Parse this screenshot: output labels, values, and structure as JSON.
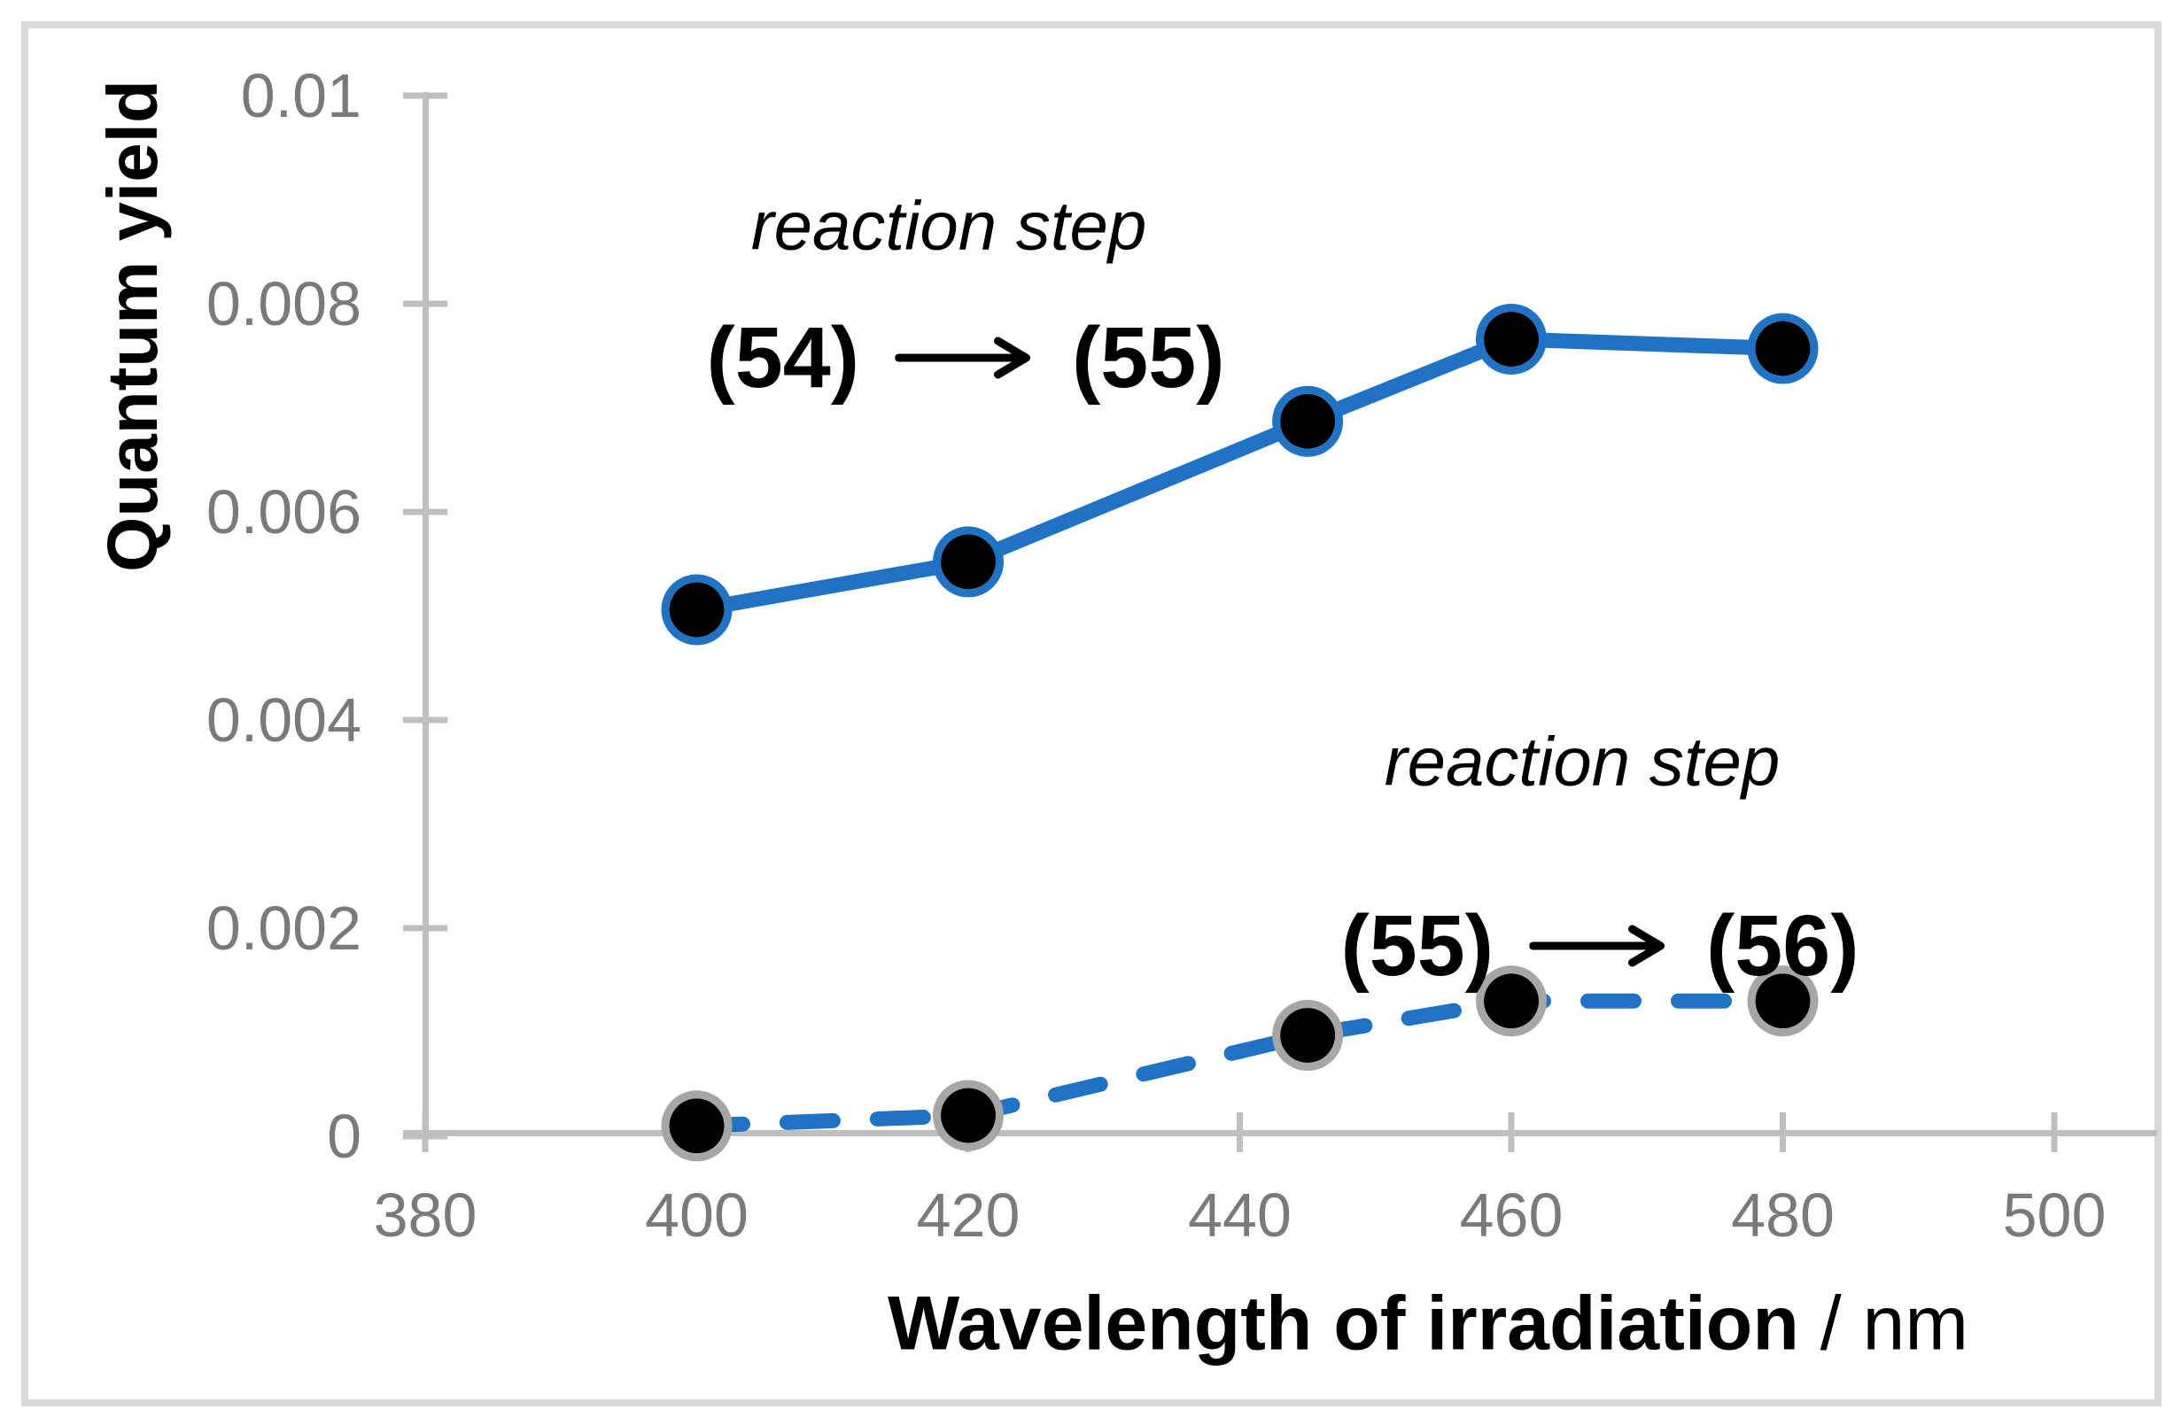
{
  "y_axis_title": "Quantum yield",
  "x_axis_title": "Wavelength of irradiation",
  "x_axis_title_unit": " / nm",
  "annotations": [
    {
      "line1": "reaction step",
      "from": "(54)",
      "to": "(55)"
    },
    {
      "line1": "reaction step",
      "from": "(55)",
      "to": "(56)"
    }
  ],
  "colors": {
    "series_blue": "#1F72C4",
    "axis_gray": "#BFBFBF",
    "tick_label_gray": "#7a7a7a",
    "dashed_marker_ring_gray": "#A6A6A6",
    "marker_fill_black": "#000000",
    "frame_border_gray": "#D9D9D9"
  },
  "chart_data": {
    "type": "line",
    "title": "",
    "xlabel": "Wavelength of irradiation / nm",
    "ylabel": "Quantum yield",
    "xlim": [
      380,
      500
    ],
    "ylim": [
      0,
      0.01
    ],
    "x_ticks": [
      380,
      400,
      420,
      440,
      460,
      480,
      500
    ],
    "x_tick_labels": [
      "380",
      "400",
      "420",
      "440",
      "460",
      "480",
      "500"
    ],
    "y_ticks": [
      0,
      0.002,
      0.004,
      0.006,
      0.008,
      0.01
    ],
    "y_tick_labels": [
      "0",
      "0.002",
      "0.004",
      "0.006",
      "0.008",
      "0.01"
    ],
    "grid": false,
    "legend_position": "none (inline text annotations)",
    "x": [
      400,
      420,
      445,
      460,
      480
    ],
    "series": [
      {
        "name": "reaction step (54) → (55)",
        "line_style": "solid",
        "marker": "black-circle-blue-ring",
        "values": [
          0.00506,
          0.00552,
          0.00687,
          0.00766,
          0.00757
        ]
      },
      {
        "name": "reaction step (55) → (56)",
        "line_style": "dashed",
        "marker": "black-circle-gray-ring",
        "values": [
          0.0001,
          0.0002,
          0.00097,
          0.0013,
          0.0013
        ]
      }
    ]
  }
}
